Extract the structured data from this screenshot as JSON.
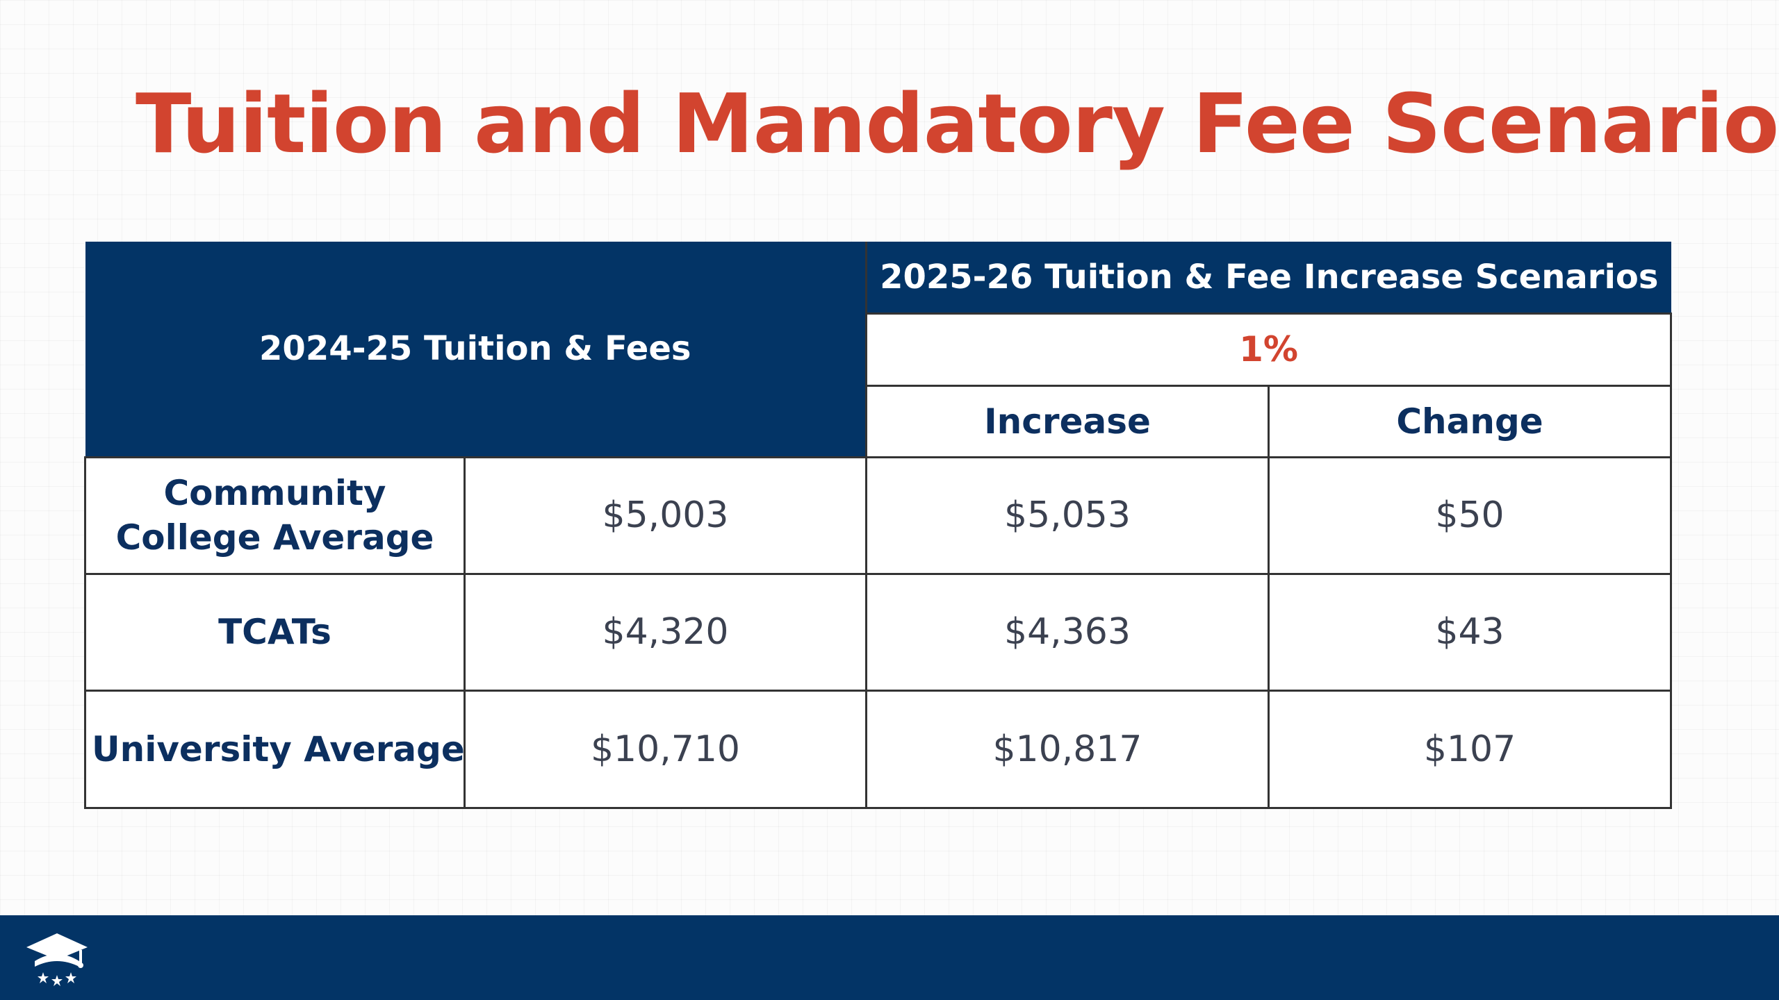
{
  "title": "Tuition and Mandatory Fee Scenarios",
  "colors": {
    "title": "#d2442f",
    "navy": "#033466",
    "accent_red": "#d2442f",
    "text_navy": "#0c2f5f",
    "value_text": "#3b4150",
    "white": "#ffffff"
  },
  "table": {
    "base_header": "2024-25 Tuition & Fees",
    "scenarios_header": "2025-26 Tuition & Fee Increase Scenarios",
    "scenario_percent": "1%",
    "increase_header": "Increase",
    "change_header": "Change",
    "rows": [
      {
        "label_line1": "Community",
        "label_line2": "College Average",
        "base": "$5,003",
        "increase": "$5,053",
        "change": "$50"
      },
      {
        "label_line1": "TCATs",
        "label_line2": "",
        "base": "$4,320",
        "increase": "$4,363",
        "change": "$43"
      },
      {
        "label_line1": "University Average",
        "label_line2": "",
        "base": "$10,710",
        "increase": "$10,817",
        "change": "$107"
      }
    ]
  },
  "footer": {
    "logo_icon": "graduation-cap-stars-icon"
  }
}
